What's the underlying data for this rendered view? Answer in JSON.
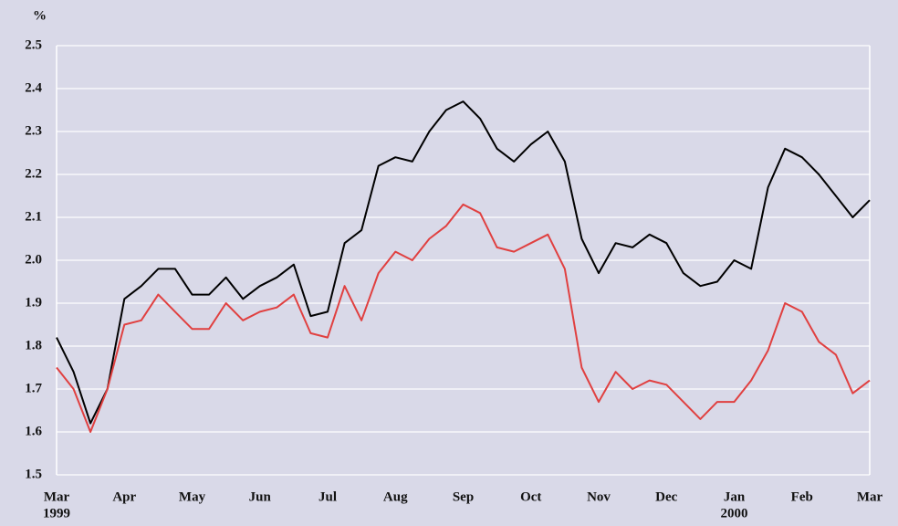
{
  "chart_data": {
    "type": "line",
    "y_axis_label": "%",
    "x": [
      0,
      0.25,
      0.5,
      0.75,
      1,
      1.25,
      1.5,
      1.75,
      2,
      2.25,
      2.5,
      2.75,
      3,
      3.25,
      3.5,
      3.75,
      4,
      4.25,
      4.5,
      4.75,
      5,
      5.25,
      5.5,
      5.75,
      6,
      6.25,
      6.5,
      6.75,
      7,
      7.25,
      7.5,
      7.75,
      8,
      8.25,
      8.5,
      8.75,
      9,
      9.25,
      9.5,
      9.75,
      10,
      10.25,
      10.5,
      10.75,
      11,
      11.25,
      11.5,
      11.75,
      12
    ],
    "series": [
      {
        "color": "#000000",
        "values": [
          1.82,
          1.74,
          1.62,
          1.7,
          1.91,
          1.94,
          1.98,
          1.98,
          1.92,
          1.92,
          1.96,
          1.91,
          1.94,
          1.96,
          1.99,
          1.87,
          1.88,
          2.04,
          2.07,
          2.22,
          2.24,
          2.23,
          2.3,
          2.35,
          2.37,
          2.33,
          2.26,
          2.23,
          2.27,
          2.3,
          2.23,
          2.05,
          1.97,
          2.04,
          2.03,
          2.06,
          2.04,
          1.97,
          1.94,
          1.95,
          2.0,
          1.98,
          2.17,
          2.26,
          2.24,
          2.2,
          2.15,
          2.1,
          2.14
        ]
      },
      {
        "color": "#e04040",
        "values": [
          1.75,
          1.7,
          1.6,
          1.7,
          1.85,
          1.86,
          1.92,
          1.88,
          1.84,
          1.84,
          1.9,
          1.86,
          1.88,
          1.89,
          1.92,
          1.83,
          1.82,
          1.94,
          1.86,
          1.97,
          2.02,
          2.0,
          2.05,
          2.08,
          2.13,
          2.11,
          2.03,
          2.02,
          2.04,
          2.06,
          1.98,
          1.75,
          1.67,
          1.74,
          1.7,
          1.72,
          1.71,
          1.67,
          1.63,
          1.67,
          1.67,
          1.72,
          1.79,
          1.9,
          1.88,
          1.81,
          1.78,
          1.69,
          1.72
        ]
      }
    ],
    "xlim": [
      0,
      12
    ],
    "xticks": [
      {
        "value": 0,
        "label": "Mar"
      },
      {
        "value": 1,
        "label": "Apr"
      },
      {
        "value": 2,
        "label": "May"
      },
      {
        "value": 3,
        "label": "Jun"
      },
      {
        "value": 4,
        "label": "Jul"
      },
      {
        "value": 5,
        "label": "Aug"
      },
      {
        "value": 6,
        "label": "Sep"
      },
      {
        "value": 7,
        "label": "Oct"
      },
      {
        "value": 8,
        "label": "Nov"
      },
      {
        "value": 9,
        "label": "Dec"
      },
      {
        "value": 10,
        "label": "Jan"
      },
      {
        "value": 11,
        "label": "Feb"
      },
      {
        "value": 12,
        "label": "Mar"
      }
    ],
    "year_labels": [
      {
        "value": 0,
        "label": "1999"
      },
      {
        "value": 10,
        "label": "2000"
      }
    ],
    "ylim": [
      1.5,
      2.5
    ],
    "yticks": [
      1.5,
      1.6,
      1.7,
      1.8,
      1.9,
      {
        "value": 2,
        "label": "2.0"
      },
      2.1,
      2.2,
      2.3,
      2.4,
      2.5
    ],
    "grid": true
  }
}
